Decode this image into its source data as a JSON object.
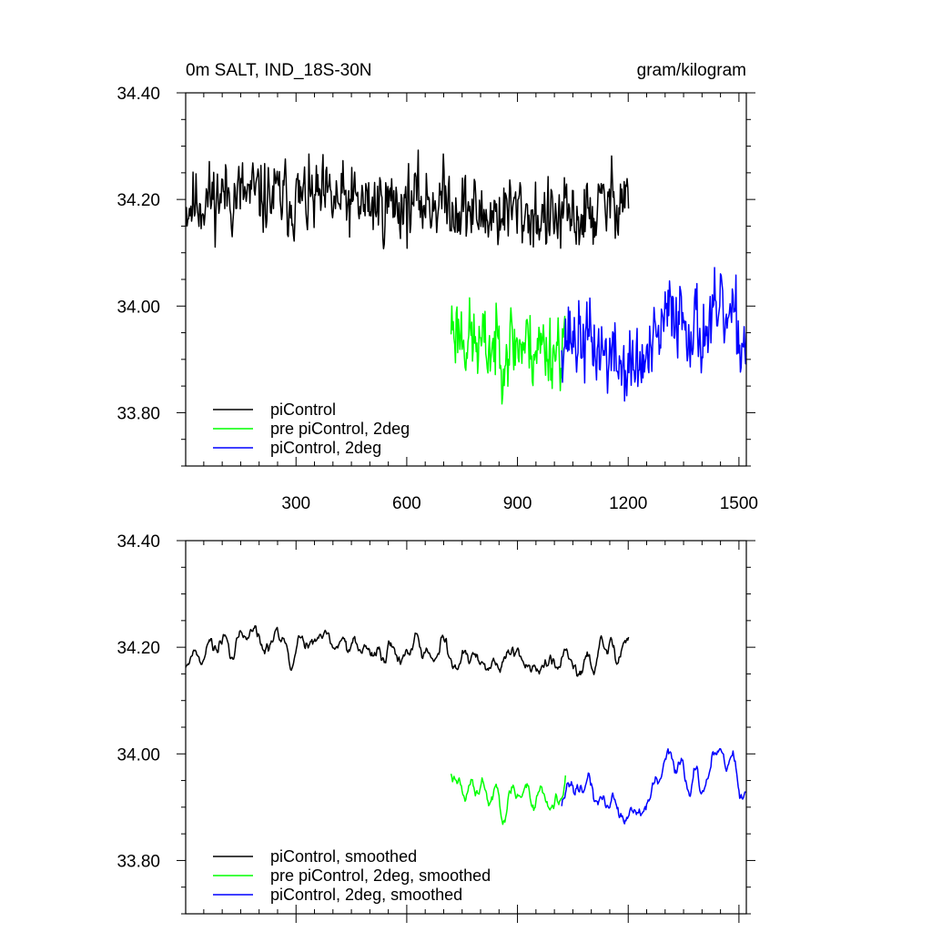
{
  "chart_data": [
    {
      "type": "line",
      "title_left": "0m SALT, IND_18S-30N",
      "title_right": "gram/kilogram",
      "xlim": [
        1,
        1520
      ],
      "ylim": [
        33.7,
        34.4
      ],
      "xticks": [
        300,
        600,
        900,
        1200,
        1500
      ],
      "xtick_labels": [
        "300",
        "600",
        "900",
        "1200",
        "1500"
      ],
      "yticks": [
        33.8,
        34.0,
        34.2,
        34.4
      ],
      "ytick_labels": [
        "33.80",
        "34.00",
        "34.20",
        "34.40"
      ],
      "legend_position": "bottom-left",
      "series": [
        {
          "name": "piControl",
          "color": "#000000",
          "x_start": 1,
          "x_end": 1200,
          "gen": {
            "seed": 11,
            "base": [
              [
                1,
                34.19
              ],
              [
                100,
                34.21
              ],
              [
                300,
                34.2
              ],
              [
                500,
                34.19
              ],
              [
                700,
                34.2
              ],
              [
                800,
                34.17
              ],
              [
                900,
                34.18
              ],
              [
                1000,
                34.16
              ],
              [
                1100,
                34.17
              ],
              [
                1200,
                34.22
              ]
            ],
            "amp": 0.05,
            "min": 34.04,
            "max": 34.35
          }
        },
        {
          "name": "pre piControl, 2deg",
          "color": "#00ff00",
          "x_start": 720,
          "x_end": 1030,
          "gen": {
            "seed": 23,
            "base": [
              [
                720,
                33.97
              ],
              [
                800,
                33.92
              ],
              [
                900,
                33.93
              ],
              [
                1000,
                33.92
              ],
              [
                1030,
                33.94
              ]
            ],
            "amp": 0.055,
            "min": 33.75,
            "max": 34.13
          }
        },
        {
          "name": "piControl, 2deg",
          "color": "#0000ff",
          "x_start": 1020,
          "x_end": 1520,
          "gen": {
            "seed": 37,
            "base": [
              [
                1020,
                33.95
              ],
              [
                1100,
                33.93
              ],
              [
                1200,
                33.88
              ],
              [
                1260,
                33.9
              ],
              [
                1320,
                34.0
              ],
              [
                1400,
                33.95
              ],
              [
                1460,
                33.98
              ],
              [
                1520,
                33.93
              ]
            ],
            "amp": 0.055,
            "min": 33.72,
            "max": 34.16
          }
        }
      ]
    },
    {
      "type": "line",
      "xlim": [
        1,
        1520
      ],
      "ylim": [
        33.7,
        34.4
      ],
      "xticks": [
        300,
        600,
        900,
        1200,
        1500
      ],
      "xtick_labels": [],
      "yticks": [
        33.8,
        34.0,
        34.2,
        34.4
      ],
      "ytick_labels": [
        "33.80",
        "34.00",
        "34.20",
        "34.40"
      ],
      "legend_position": "bottom-left",
      "series": [
        {
          "name": "piControl, smoothed",
          "color": "#000000",
          "x_start": 1,
          "x_end": 1200,
          "gen": {
            "seed": 11,
            "base": [
              [
                1,
                34.19
              ],
              [
                100,
                34.21
              ],
              [
                300,
                34.2
              ],
              [
                500,
                34.19
              ],
              [
                700,
                34.2
              ],
              [
                800,
                34.17
              ],
              [
                900,
                34.18
              ],
              [
                1000,
                34.16
              ],
              [
                1100,
                34.17
              ],
              [
                1200,
                34.22
              ]
            ],
            "amp": 0.05,
            "min": 34.04,
            "max": 34.35,
            "smooth": 4
          }
        },
        {
          "name": "pre piControl, 2deg, smoothed",
          "color": "#00ff00",
          "x_start": 720,
          "x_end": 1030,
          "gen": {
            "seed": 23,
            "base": [
              [
                720,
                33.97
              ],
              [
                800,
                33.92
              ],
              [
                900,
                33.93
              ],
              [
                1000,
                33.92
              ],
              [
                1030,
                33.94
              ]
            ],
            "amp": 0.055,
            "min": 33.75,
            "max": 34.13,
            "smooth": 4
          }
        },
        {
          "name": "piControl, 2deg, smoothed",
          "color": "#0000ff",
          "x_start": 1020,
          "x_end": 1520,
          "gen": {
            "seed": 37,
            "base": [
              [
                1020,
                33.95
              ],
              [
                1100,
                33.93
              ],
              [
                1200,
                33.88
              ],
              [
                1260,
                33.9
              ],
              [
                1320,
                34.0
              ],
              [
                1400,
                33.95
              ],
              [
                1460,
                33.98
              ],
              [
                1520,
                33.93
              ]
            ],
            "amp": 0.055,
            "min": 33.72,
            "max": 34.16,
            "smooth": 4
          }
        }
      ]
    }
  ]
}
